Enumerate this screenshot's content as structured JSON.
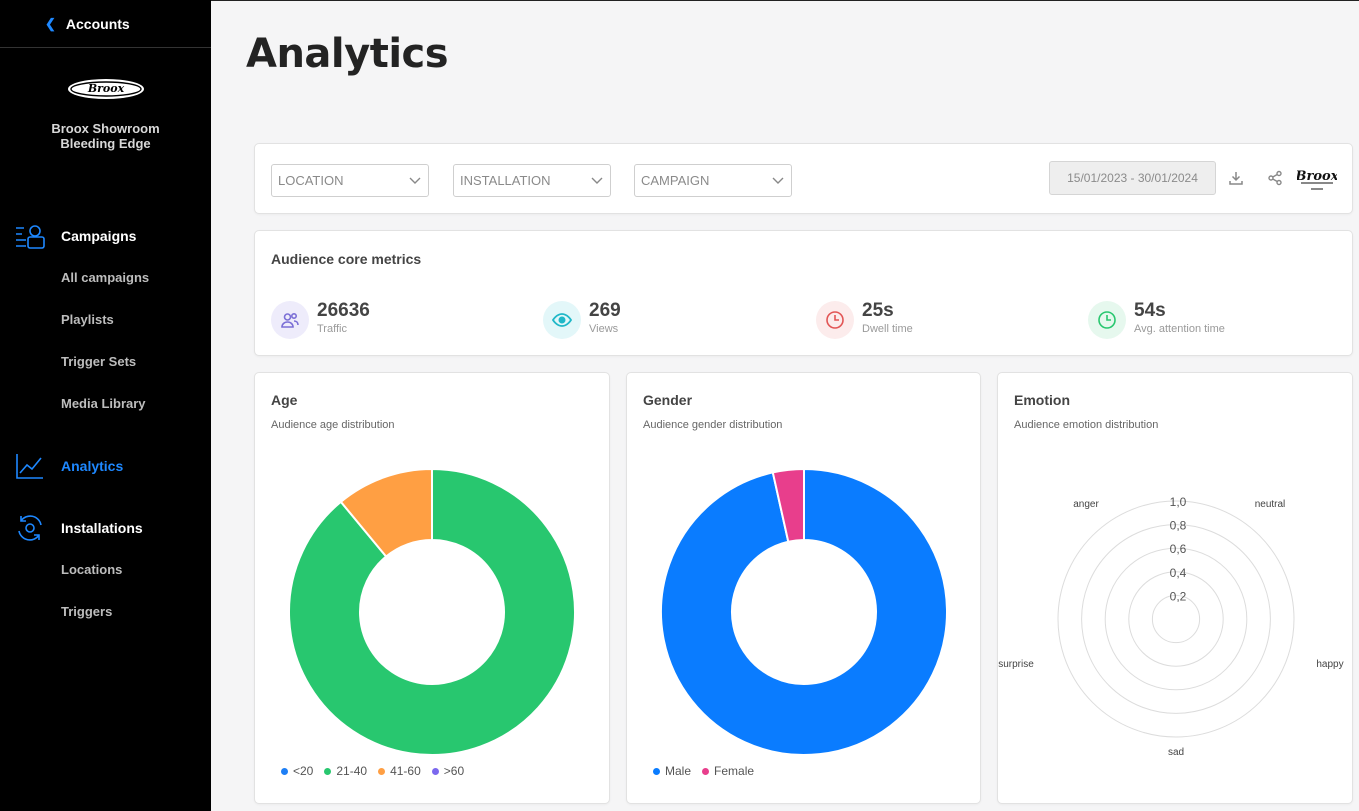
{
  "sidebar": {
    "accounts_label": "Accounts",
    "org_name_line1": "Broox Showroom",
    "org_name_line2": "Bleeding Edge",
    "groups": [
      {
        "label": "Campaigns",
        "icon": "campaigns-icon",
        "items": [
          "All campaigns",
          "Playlists",
          "Trigger Sets",
          "Media Library"
        ]
      },
      {
        "label": "Analytics",
        "icon": "analytics-icon",
        "active": true
      },
      {
        "label": "Installations",
        "icon": "installations-icon",
        "items": [
          "Locations",
          "Triggers"
        ]
      }
    ]
  },
  "page": {
    "title": "Analytics"
  },
  "filters": {
    "location": "LOCATION",
    "installation": "INSTALLATION",
    "campaign": "CAMPAIGN",
    "date_range": "15/01/2023 - 30/01/2024"
  },
  "metrics": {
    "title": "Audience core metrics",
    "items": [
      {
        "value": "26636",
        "label": "Traffic",
        "icon": "users-icon",
        "color": "#7b6fd6"
      },
      {
        "value": "269",
        "label": "Views",
        "icon": "eye-icon",
        "color": "#20b8c8"
      },
      {
        "value": "25s",
        "label": "Dwell time",
        "icon": "clock-icon",
        "color": "#e25555"
      },
      {
        "value": "54s",
        "label": "Avg. attention time",
        "icon": "clock-icon",
        "color": "#28c76f"
      }
    ]
  },
  "charts": {
    "age": {
      "title": "Age",
      "subtitle": "Audience age distribution"
    },
    "gender": {
      "title": "Gender",
      "subtitle": "Audience gender distribution"
    },
    "emotion": {
      "title": "Emotion",
      "subtitle": "Audience emotion distribution"
    }
  },
  "chart_data": [
    {
      "type": "pie",
      "categories": [
        "<20",
        "21-40",
        "41-60",
        ">60"
      ],
      "values": [
        0,
        89,
        11,
        0
      ],
      "colors": [
        "#1e7ff5",
        "#28c76f",
        "#ff9f43",
        "#7b68ee"
      ],
      "legend": "bottom"
    },
    {
      "type": "pie",
      "categories": [
        "Male",
        "Female"
      ],
      "values": [
        96.5,
        3.5
      ],
      "colors": [
        "#0a7cff",
        "#e83e8c"
      ],
      "legend": "bottom"
    },
    {
      "type": "radar",
      "categories": [
        "neutral",
        "happy",
        "sad",
        "surprise",
        "anger"
      ],
      "values": [
        0,
        0,
        0,
        0,
        0
      ],
      "ticks": [
        "0,2",
        "0,4",
        "0,6",
        "0,8",
        "1,0"
      ],
      "rlim": [
        0,
        1
      ]
    }
  ]
}
